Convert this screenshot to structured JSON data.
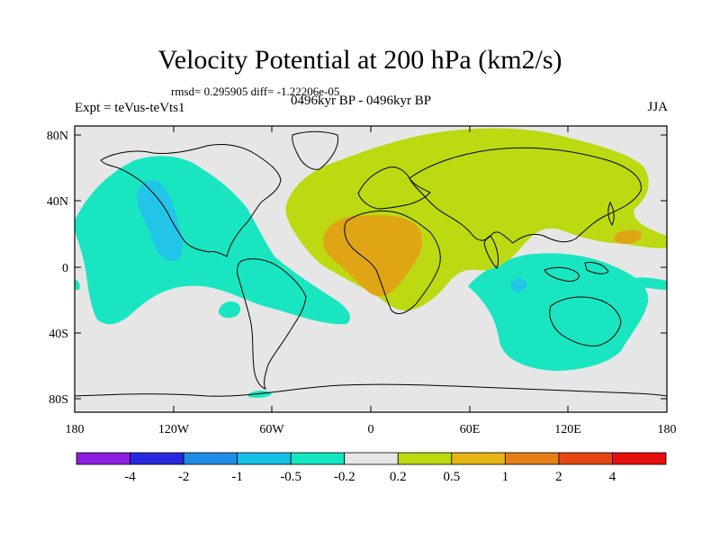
{
  "title": "Velocity Potential at 200 hPa (km2/s)",
  "stats": "rmsd= 0.295905 diff= -1.22206e-05",
  "experiment": "Expt = teVus-teVts1",
  "period": "0496kyr BP - 0496kyr BP",
  "season": "JJA",
  "lat_labels": [
    "80N",
    "40N",
    "0",
    "40S",
    "80S"
  ],
  "lon_labels": [
    "180",
    "120W",
    "60W",
    "0",
    "60E",
    "120E",
    "180"
  ],
  "colorbar": {
    "labels": [
      "-4",
      "-2",
      "-1",
      "-0.5",
      "-0.2",
      "0.2",
      "0.5",
      "1",
      "2",
      "4"
    ],
    "colors": [
      "#8b1ee0",
      "#2828e0",
      "#1e8ce6",
      "#14c0e6",
      "#14e6c0",
      "#e6e6e6",
      "#bcd912",
      "#e6b414",
      "#e68014",
      "#e64614",
      "#e60e0e"
    ]
  },
  "colors": {
    "background": "#e6e6e6",
    "pos_0_2": "#bcd912",
    "pos_0_5": "#dfa515",
    "neg_0_2": "#19e6c1",
    "neg_0_5": "#22c5e8",
    "neg_1": "#3c9be8",
    "coastline": "#000000"
  }
}
